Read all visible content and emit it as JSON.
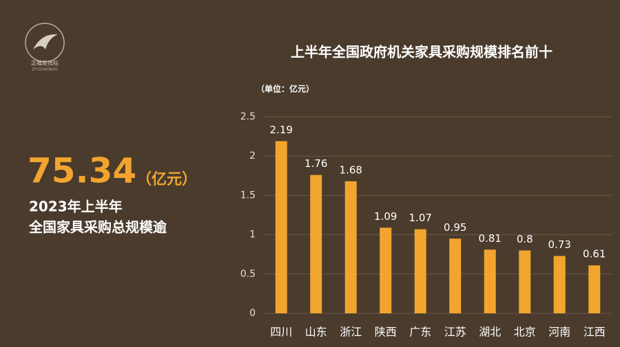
{
  "brand": {
    "name": "正福易找标",
    "sub": "ZFYIZHAOBIAO"
  },
  "headline": {
    "number": "75.34",
    "unit": "（亿元）",
    "line1": "2023年上半年",
    "line2": "全国家具采购总规模逾"
  },
  "chart_data": {
    "type": "bar",
    "title": "上半年全国政府机关家具采购规模排名前十",
    "unit_label": "（单位：亿元）",
    "categories": [
      "四川",
      "山东",
      "浙江",
      "陕西",
      "广东",
      "江苏",
      "湖北",
      "北京",
      "河南",
      "江西"
    ],
    "values": [
      2.19,
      1.76,
      1.68,
      1.09,
      1.07,
      0.95,
      0.81,
      0.8,
      0.73,
      0.61
    ],
    "color": "#f2a52e",
    "ylim": [
      0,
      2.5
    ],
    "yticks": [
      0,
      0.5,
      1,
      1.5,
      2,
      2.5
    ],
    "grid": true
  }
}
